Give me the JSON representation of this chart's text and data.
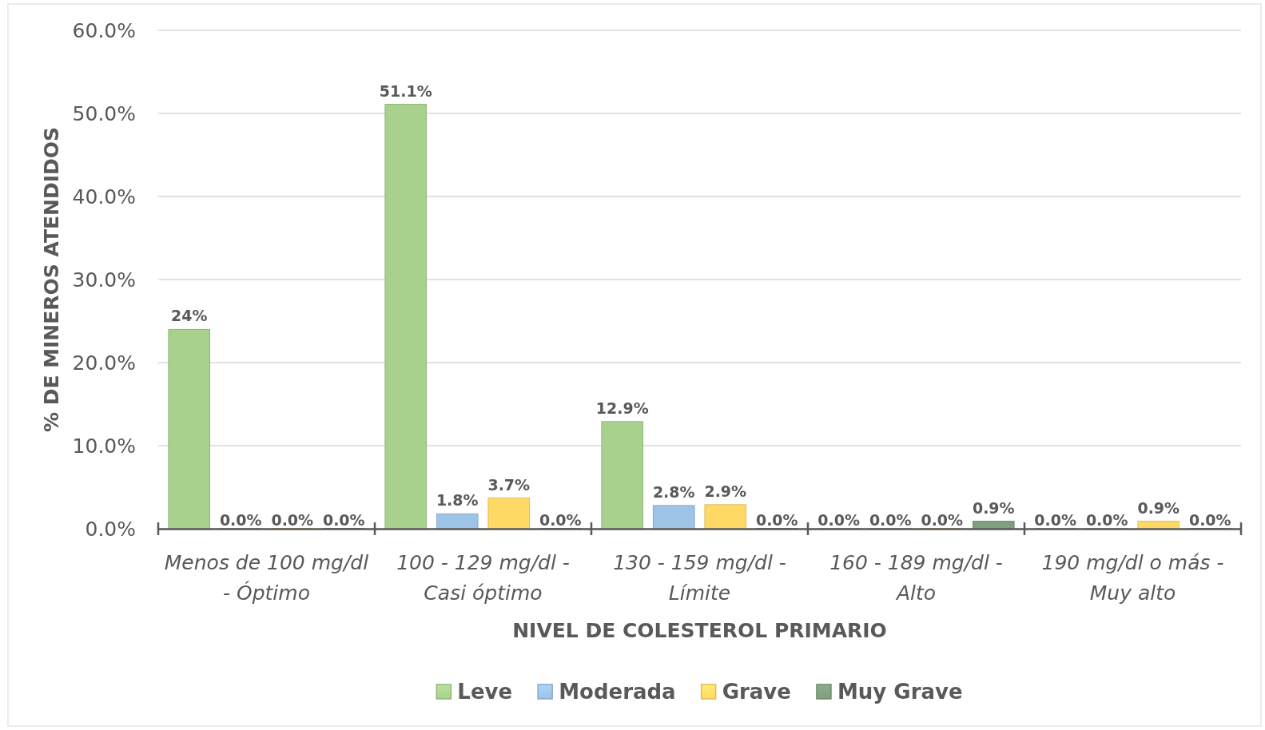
{
  "chart_data": {
    "type": "bar",
    "xlabel": "NIVEL DE COLESTEROL PRIMARIO",
    "ylabel": "% DE MINEROS ATENDIDOS",
    "categories": [
      "Menos de 100 mg/dl - Óptimo",
      "100 - 129 mg/dl - Casi óptimo",
      "130 - 159 mg/dl - Límite",
      "160 - 189 mg/dl  - Alto",
      "190 mg/dl o más - Muy alto"
    ],
    "series": [
      {
        "name": "Leve",
        "color": "#a9d18e",
        "values": [
          24,
          51.1,
          12.9,
          0,
          0
        ],
        "value_labels": [
          "24%",
          "51.1%",
          "12.9%",
          "0.0%",
          "0.0%"
        ]
      },
      {
        "name": "Moderada",
        "color": "#9dc3e6",
        "values": [
          0,
          1.8,
          2.8,
          0,
          0
        ],
        "value_labels": [
          "0.0%",
          "1.8%",
          "2.8%",
          "0.0%",
          "0.0%"
        ]
      },
      {
        "name": "Grave",
        "color": "#ffd966",
        "values": [
          0,
          3.7,
          2.9,
          0,
          0.9
        ],
        "value_labels": [
          "0.0%",
          "3.7%",
          "2.9%",
          "0.0%",
          "0.9%"
        ]
      },
      {
        "name": "Muy Grave",
        "color": "#7f9f7f",
        "values": [
          0,
          0,
          0,
          0.9,
          0
        ],
        "value_labels": [
          "0.0%",
          "0.0%",
          "0.0%",
          "0.9%",
          "0.0%"
        ]
      }
    ],
    "ylim": [
      0,
      60
    ],
    "yticks": [
      {
        "value": 0,
        "label": "0.0%"
      },
      {
        "value": 10,
        "label": "10.0%"
      },
      {
        "value": 20,
        "label": "20.0%"
      },
      {
        "value": 30,
        "label": "30.0%"
      },
      {
        "value": 40,
        "label": "40.0%"
      },
      {
        "value": 50,
        "label": "50.0%"
      },
      {
        "value": 60,
        "label": "60.0%"
      }
    ],
    "grid": "y",
    "legend": "bottom"
  }
}
